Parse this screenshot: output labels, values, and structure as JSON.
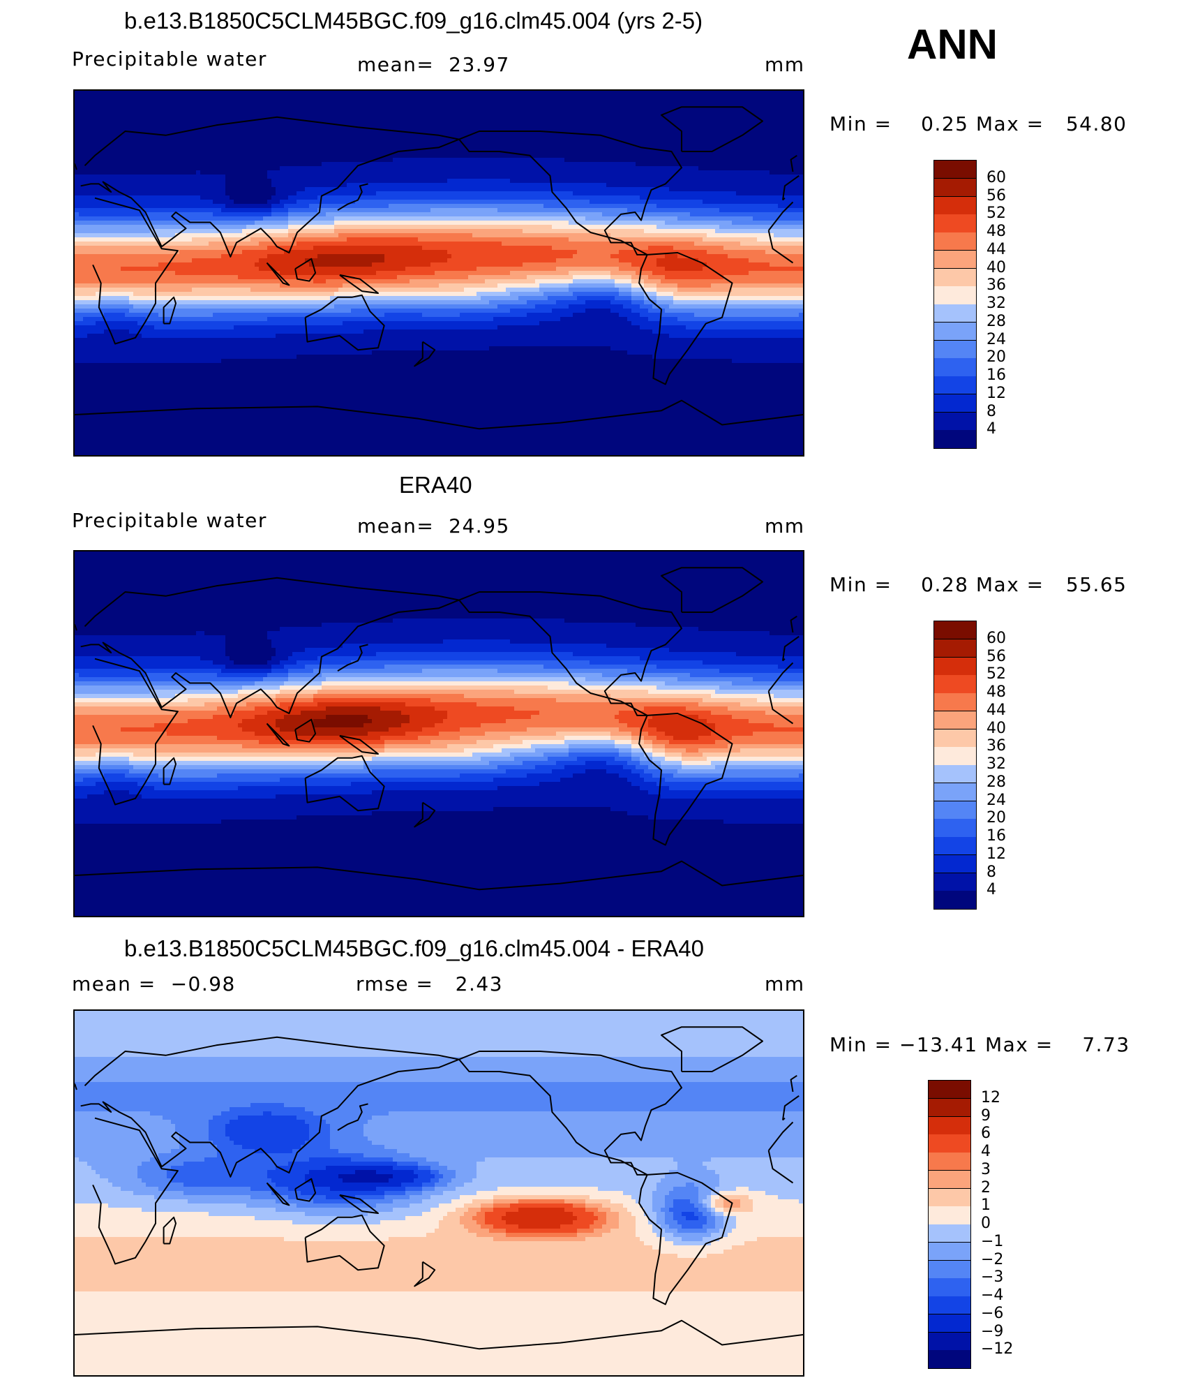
{
  "season": "ANN",
  "colors": {
    "abs_scale": [
      "#00067d",
      "#0012a8",
      "#0328d0",
      "#1344e6",
      "#2e62f0",
      "#5485f5",
      "#7aa3f9",
      "#a5c2fc",
      "#d3e3fe",
      "#feeadc",
      "#fdc8a8",
      "#fba47c",
      "#f7794c",
      "#ee4a22",
      "#d52e0b",
      "#a51b02",
      "#7a0d00"
    ],
    "diff_scale": [
      "#00067d",
      "#0012a8",
      "#0328d0",
      "#1344e6",
      "#2e62f0",
      "#5485f5",
      "#7aa3f9",
      "#a5c2fc",
      "#d3e3fe",
      "#feeadc",
      "#fdc8a8",
      "#fba47c",
      "#f7794c",
      "#ee4a22",
      "#d52e0b",
      "#a51b02",
      "#7a0d00"
    ]
  },
  "panels": [
    {
      "title": "b.e13.B1850C5CLM45BGC.f09_g16.clm45.004 (yrs 2-5)",
      "left_label": "Precipitable water",
      "mid_label": "mean=  23.97",
      "units": "mm",
      "minmax": "Min =    0.25 Max =   54.80",
      "colorbar_ticks": [
        "60",
        "56",
        "52",
        "48",
        "44",
        "40",
        "36",
        "32",
        "28",
        "24",
        "20",
        "16",
        "12",
        "8",
        "4"
      ]
    },
    {
      "title": "ERA40",
      "left_label": "Precipitable water",
      "mid_label": "mean=  24.95",
      "units": "mm",
      "minmax": "Min =    0.28 Max =   55.65",
      "colorbar_ticks": [
        "60",
        "56",
        "52",
        "48",
        "44",
        "40",
        "36",
        "32",
        "28",
        "24",
        "20",
        "16",
        "12",
        "8",
        "4"
      ]
    },
    {
      "title": "b.e13.B1850C5CLM45BGC.f09_g16.clm45.004 - ERA40",
      "left_label": "mean =  −0.98",
      "mid_label": "rmse =   2.43",
      "units": "mm",
      "minmax": "Min = −13.41 Max =    7.73",
      "colorbar_ticks": [
        "12",
        "9",
        "6",
        "4",
        "3",
        "2",
        "1",
        "0",
        "−1",
        "−2",
        "−3",
        "−4",
        "−6",
        "−9",
        "−12"
      ]
    }
  ]
}
